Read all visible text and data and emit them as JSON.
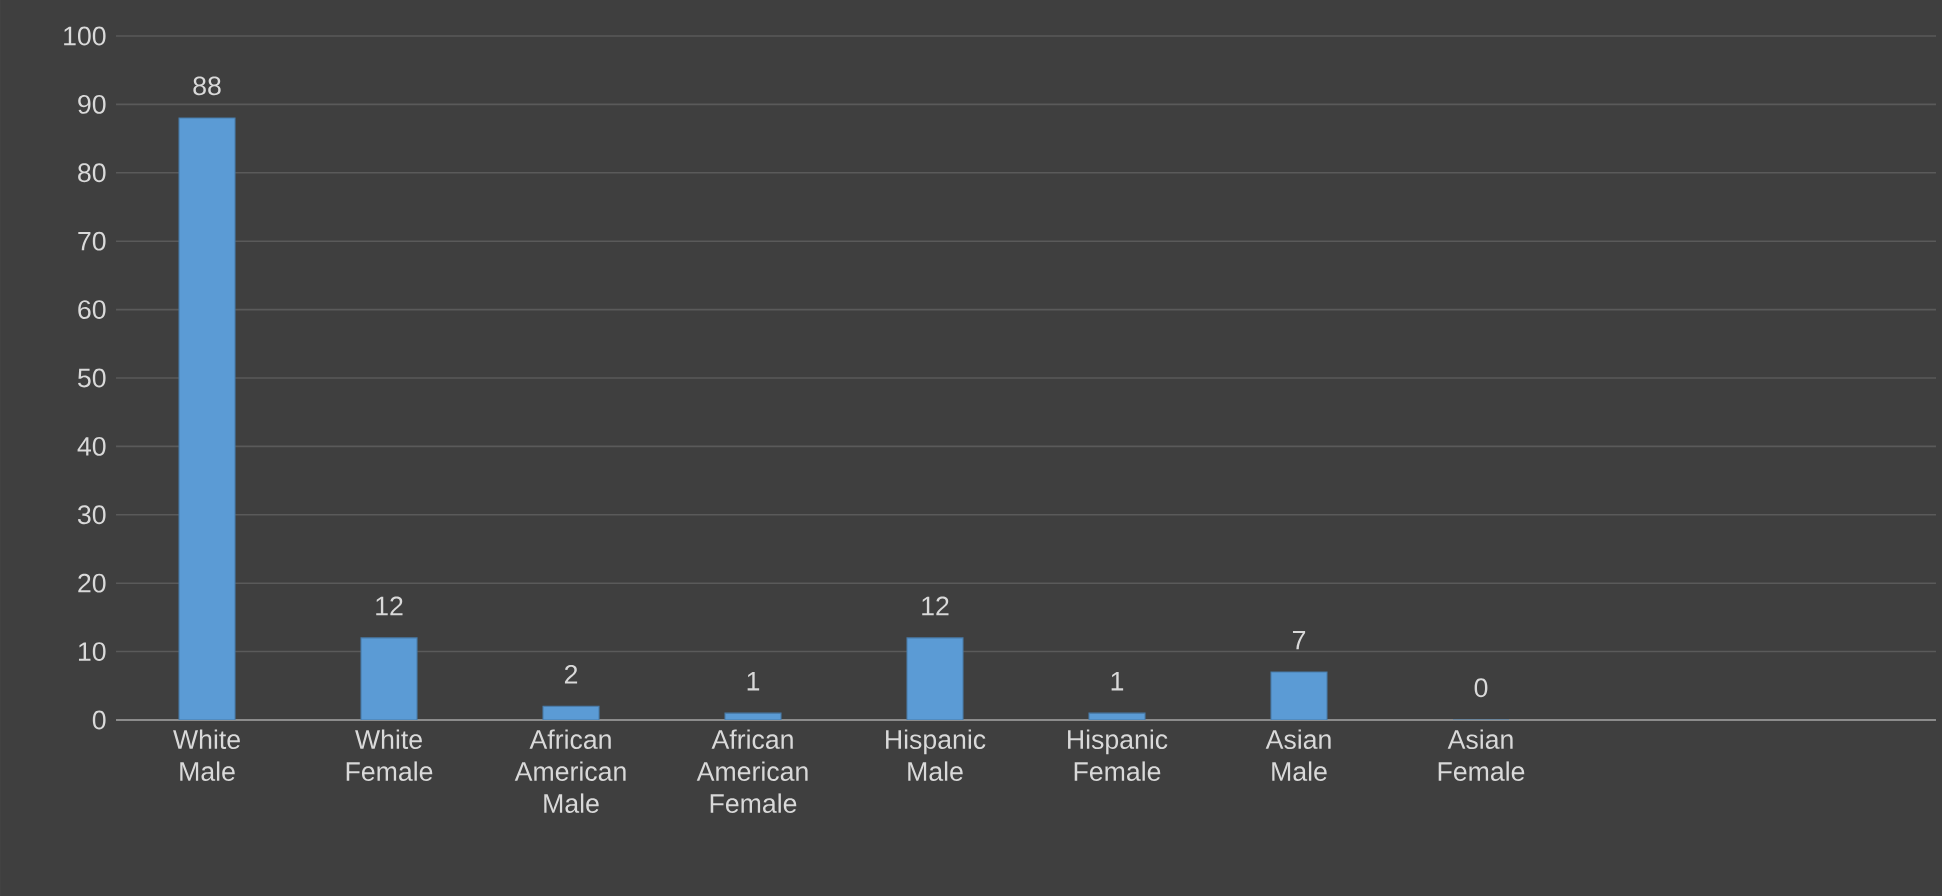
{
  "chart_data": {
    "type": "bar",
    "categories": [
      "White Male",
      "White Female",
      "African American Male",
      "African American Female",
      "Hispanic Male",
      "Hispanic Female",
      "Asian Male",
      "Asian Female",
      null,
      null
    ],
    "values": [
      88,
      12,
      2,
      1,
      12,
      1,
      7,
      0,
      null,
      null
    ],
    "color": "#5b9bd5",
    "ylim": [
      0,
      100
    ],
    "yticks": [
      0,
      10,
      20,
      30,
      40,
      50,
      60,
      70,
      80,
      90,
      100
    ],
    "grid": "y",
    "data_labels": true
  }
}
